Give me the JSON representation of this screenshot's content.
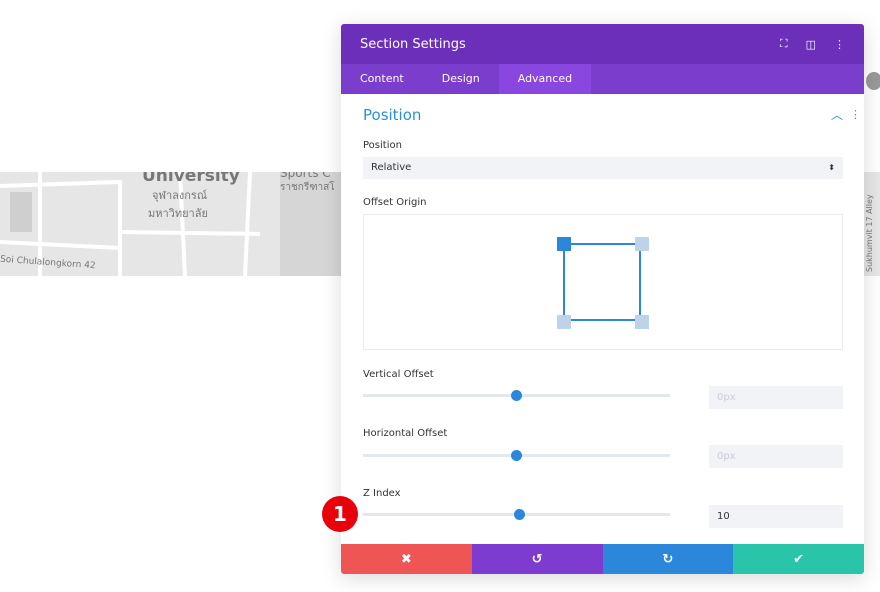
{
  "map": {
    "labels": [
      "University",
      "จุฬาลงกรณ์",
      "มหาวิทยาลัย",
      "Sports C",
      "ราชกรีฑาสโ",
      "Soi Chulalongkorn 42",
      "Sukhumvit 17 Alley"
    ]
  },
  "panel": {
    "title": "Section Settings",
    "header_icons": [
      "fullscreen-icon",
      "split-view-icon",
      "more-vertical-icon"
    ],
    "tabs": [
      {
        "label": "Content"
      },
      {
        "label": "Design"
      },
      {
        "label": "Advanced",
        "active": true
      }
    ],
    "section_title": "Position",
    "position": {
      "label": "Position",
      "value": "Relative"
    },
    "offset_origin": {
      "label": "Offset Origin",
      "selected": "top-left"
    },
    "vertical_offset": {
      "label": "Vertical Offset",
      "placeholder": "0px",
      "slider_percent": 50
    },
    "horizontal_offset": {
      "label": "Horizontal Offset",
      "placeholder": "0px",
      "slider_percent": 50
    },
    "z_index": {
      "label": "Z Index",
      "value": "10",
      "slider_percent": 51
    },
    "footer": {
      "cancel": "✖",
      "undo": "↺",
      "redo": "↻",
      "save": "✔"
    },
    "colors": {
      "header": "#6b2fba",
      "tabs": "#7b3dcc",
      "accent": "#2b87da",
      "cancel": "#ef5555",
      "undo": "#7e3bd0",
      "redo": "#2b87da",
      "save": "#29c4a9"
    }
  },
  "badge": "1"
}
